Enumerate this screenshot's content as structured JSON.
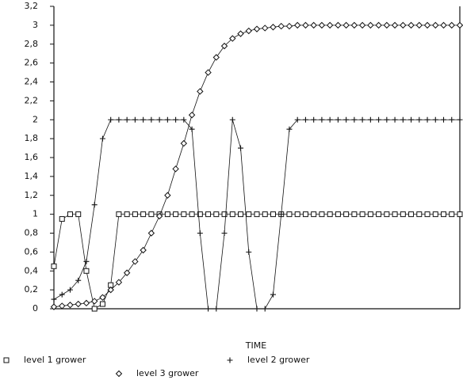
{
  "chart_data": {
    "type": "line",
    "x_label": "TIME",
    "x": [
      0,
      2,
      4,
      6,
      8,
      10,
      12,
      14,
      16,
      18,
      20,
      22,
      24,
      26,
      28,
      30,
      32,
      34,
      36,
      38,
      40,
      42,
      44,
      46,
      48,
      50,
      52,
      54,
      56,
      58,
      60,
      62,
      64,
      66,
      68,
      70,
      72,
      74,
      76,
      78,
      80,
      82,
      84,
      86,
      88,
      90,
      92,
      94,
      96,
      98,
      100
    ],
    "xlim": [
      0,
      100
    ],
    "ylim": [
      0,
      3.2
    ],
    "yticks": [
      0,
      {
        "value": 0.2,
        "label": "0,2"
      },
      {
        "value": 0.4,
        "label": "0,4"
      },
      {
        "value": 0.6,
        "label": "0,6"
      },
      {
        "value": 0.8,
        "label": "0,8"
      },
      1,
      {
        "value": 1.2,
        "label": "1,2"
      },
      {
        "value": 1.4,
        "label": "1,4"
      },
      {
        "value": 1.6,
        "label": "1,6"
      },
      {
        "value": 1.8,
        "label": "1,8"
      },
      2,
      {
        "value": 2.2,
        "label": "2,2"
      },
      {
        "value": 2.4,
        "label": "2,4"
      },
      {
        "value": 2.6,
        "label": "2,6"
      },
      {
        "value": 2.8,
        "label": "2,8"
      },
      3,
      {
        "value": 3.2,
        "label": "3,2"
      }
    ],
    "series": [
      {
        "name": "level 1 grower",
        "color": "#111111",
        "marker": "square",
        "values": [
          0.45,
          0.95,
          1,
          1,
          0.4,
          0,
          0.05,
          0.25,
          1,
          1,
          1,
          1,
          1,
          1,
          1,
          1,
          1,
          1,
          1,
          1,
          1,
          1,
          1,
          1,
          1,
          1,
          1,
          1,
          1,
          1,
          1,
          1,
          1,
          1,
          1,
          1,
          1,
          1,
          1,
          1,
          1,
          1,
          1,
          1,
          1,
          1,
          1,
          1,
          1,
          1,
          1
        ]
      },
      {
        "name": "level 2 grower",
        "color": "#111111",
        "marker": "plus",
        "values": [
          0.1,
          0.15,
          0.2,
          0.3,
          0.5,
          1.1,
          1.8,
          2,
          2,
          2,
          2,
          2,
          2,
          2,
          2,
          2,
          2,
          1.9,
          0.8,
          0,
          0,
          0.8,
          2,
          1.7,
          0.6,
          0,
          0,
          0.15,
          1,
          1.9,
          2,
          2,
          2,
          2,
          2,
          2,
          2,
          2,
          2,
          2,
          2,
          2,
          2,
          2,
          2,
          2,
          2,
          2,
          2,
          2,
          2
        ]
      },
      {
        "name": "level 3 grower",
        "color": "#111111",
        "marker": "diamond",
        "values": [
          0.02,
          0.03,
          0.04,
          0.05,
          0.06,
          0.08,
          0.12,
          0.2,
          0.28,
          0.38,
          0.5,
          0.62,
          0.8,
          0.98,
          1.2,
          1.48,
          1.75,
          2.05,
          2.3,
          2.5,
          2.66,
          2.78,
          2.86,
          2.91,
          2.94,
          2.96,
          2.97,
          2.98,
          2.99,
          2.99,
          3,
          3,
          3,
          3,
          3,
          3,
          3,
          3,
          3,
          3,
          3,
          3,
          3,
          3,
          3,
          3,
          3,
          3,
          3,
          3,
          3
        ]
      }
    ]
  }
}
